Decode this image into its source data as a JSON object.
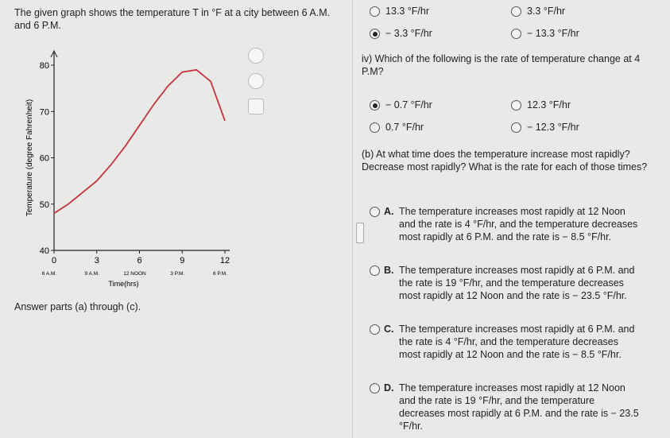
{
  "intro": "The given graph shows the temperature T in °F at a city between 6 A.M. and 6 P.M.",
  "answer_parts": "Answer parts (a) through (c).",
  "graph": {
    "type": "line",
    "xlabel": "Time(hrs)",
    "ylabel": "Temperature (degree Fahrenheit)",
    "xlim": [
      0,
      12
    ],
    "ylim": [
      40,
      80
    ],
    "xticks": [
      0,
      3,
      6,
      9,
      12
    ],
    "xtick_times": [
      "6 A.M.",
      "9 A.M.",
      "12 NOON",
      "3 P.M.",
      "6 P.M."
    ],
    "yticks": [
      40,
      50,
      60,
      70,
      80
    ],
    "color": "#c4343c",
    "x": [
      0,
      1,
      2,
      3,
      4,
      5,
      6,
      7,
      8,
      9,
      10,
      11,
      12
    ],
    "values": [
      48,
      50,
      52.5,
      55,
      58.5,
      62.5,
      67,
      71.5,
      75.5,
      78.5,
      79,
      76.5,
      68
    ]
  },
  "top_options": [
    {
      "label": "13.3 °F/hr",
      "selected": false
    },
    {
      "label": "3.3 °F/hr",
      "selected": false
    },
    {
      "label": "− 3.3 °F/hr",
      "selected": true
    },
    {
      "label": "− 13.3 °F/hr",
      "selected": false
    }
  ],
  "question_iv": {
    "prompt": "iv) Which of the following is the rate of temperature change at 4 P.M?",
    "options": [
      {
        "label": "− 0.7 °F/hr",
        "selected": true
      },
      {
        "label": "12.3 °F/hr",
        "selected": false
      },
      {
        "label": "0.7 °F/hr",
        "selected": false
      },
      {
        "label": "− 12.3 °F/hr",
        "selected": false
      }
    ]
  },
  "question_b": {
    "prompt": "(b) At what time does the temperature increase most rapidly? Decrease most rapidly? What is the rate for each of those times?",
    "choices": [
      {
        "letter": "A.",
        "text": "The temperature increases most rapidly at 12 Noon and the rate is 4 °F/hr, and the temperature decreases most rapidly at 6 P.M. and the rate is − 8.5 °F/hr."
      },
      {
        "letter": "B.",
        "text": "The temperature increases most rapidly at 6 P.M. and the rate is 19 °F/hr, and the temperature decreases most rapidly at 12 Noon and the rate is − 23.5 °F/hr."
      },
      {
        "letter": "C.",
        "text": "The temperature increases most rapidly at 6 P.M. and the rate is 4 °F/hr, and the temperature decreases most rapidly at 12 Noon and the rate is − 8.5 °F/hr."
      },
      {
        "letter": "D.",
        "text": "The temperature increases most rapidly at 12 Noon and the rate is 19 °F/hr, and the temperature decreases most rapidly at 6 P.M. and the rate is − 23.5 °F/hr."
      }
    ]
  }
}
